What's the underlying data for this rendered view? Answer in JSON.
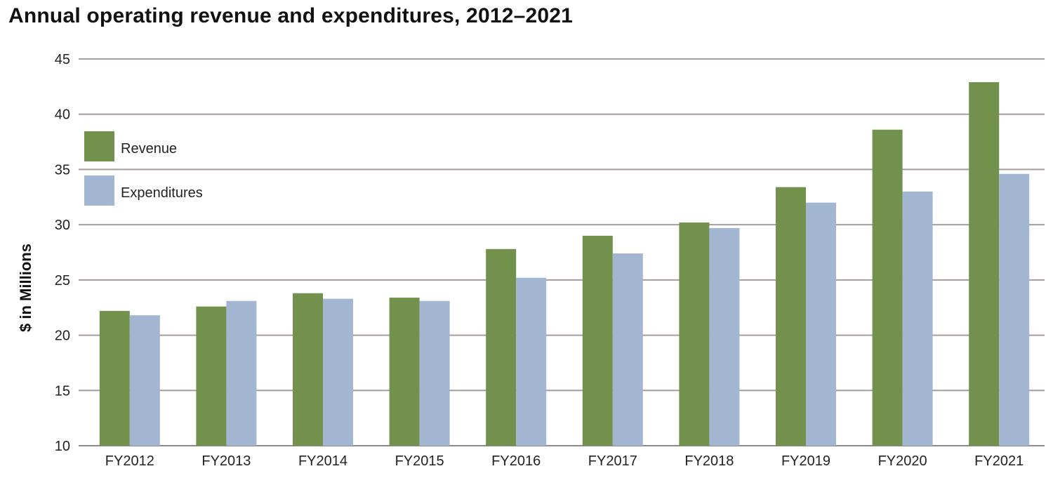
{
  "chart_data": {
    "type": "bar",
    "title": "Annual operating revenue and expenditures, 2012–2021",
    "xlabel": "",
    "ylabel": "$ in Millions",
    "ylim": [
      10,
      45
    ],
    "yticks": [
      10,
      15,
      20,
      25,
      30,
      35,
      40,
      45
    ],
    "grid": true,
    "legend_position": "top-left",
    "categories": [
      "FY2012",
      "FY2013",
      "FY2014",
      "FY2015",
      "FY2016",
      "FY2017",
      "FY2018",
      "FY2019",
      "FY2020",
      "FY2021"
    ],
    "series": [
      {
        "name": "Revenue",
        "color": "#71914d",
        "values": [
          22.2,
          22.6,
          23.8,
          23.4,
          27.8,
          29.0,
          30.2,
          33.4,
          38.6,
          42.9
        ]
      },
      {
        "name": "Expenditures",
        "color": "#a2b5d1",
        "values": [
          21.8,
          23.1,
          23.3,
          23.1,
          25.2,
          27.4,
          29.7,
          32.0,
          33.0,
          34.6
        ]
      }
    ]
  }
}
